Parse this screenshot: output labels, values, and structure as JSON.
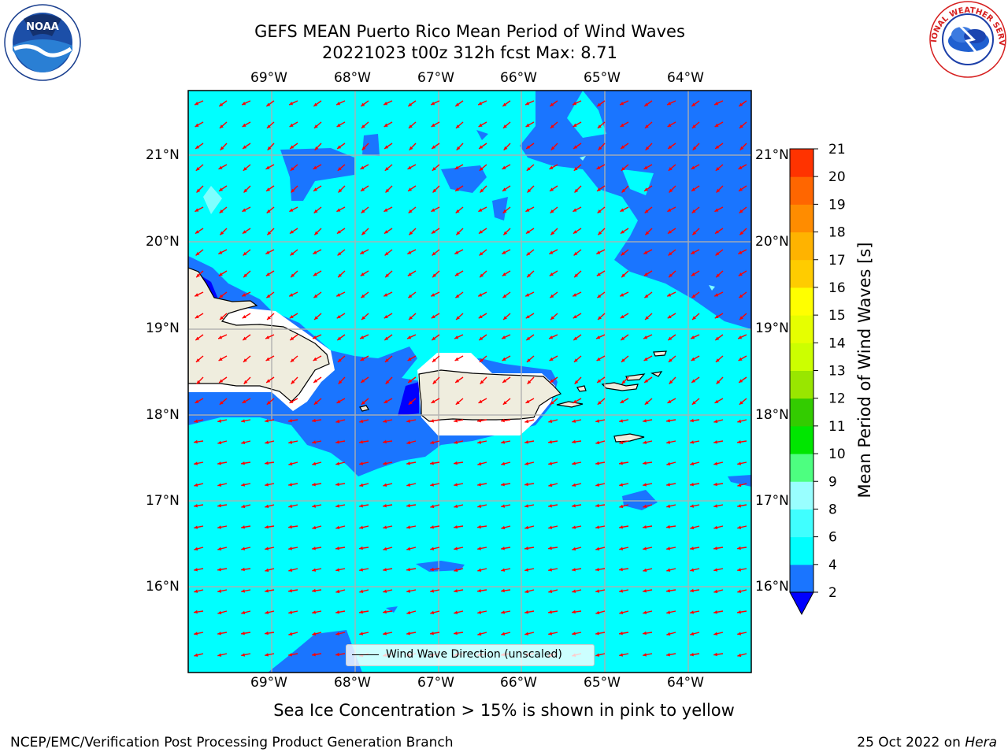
{
  "header": {
    "title_line1": "GEFS MEAN Puerto Rico Mean Period of Wind Waves",
    "title_line2": "20221023 t00z 312h fcst   Max: 8.71"
  },
  "logos": {
    "left": "noaa-logo",
    "right": "national-weather-service-logo",
    "nws_ring_text": "NATIONAL WEATHER SERVICE"
  },
  "map": {
    "region": "Puerto Rico",
    "lon_labels": [
      "69°W",
      "68°W",
      "67°W",
      "66°W",
      "65°W",
      "64°W"
    ],
    "lat_labels": [
      "21°N",
      "20°N",
      "19°N",
      "18°N",
      "17°N",
      "16°N"
    ],
    "legend_label": "Wind Wave Direction (unscaled)",
    "arrow_color": "#ff0000",
    "land_color": "#efedde"
  },
  "colorbar": {
    "label": "Mean Period of Wind Waves [s]",
    "ticks": [
      "2",
      "4",
      "6",
      "8",
      "9",
      "10",
      "11",
      "12",
      "13",
      "14",
      "15",
      "16",
      "17",
      "18",
      "19",
      "20",
      "21"
    ],
    "colors": [
      "#1a75ff",
      "#00ffff",
      "#40ffff",
      "#99ffff",
      "#4dff80",
      "#00e600",
      "#33cc00",
      "#99e600",
      "#ccff00",
      "#e6ff00",
      "#ffff00",
      "#ffcc00",
      "#ffb300",
      "#ff8c00",
      "#ff6600",
      "#ff3300",
      "#ff0000"
    ],
    "under_color": "#0000ff"
  },
  "note": "Sea Ice Concentration > 15% is shown in pink to yellow",
  "footer": {
    "left": "NCEP/EMC/Verification Post Processing Product Generation Branch",
    "right_prefix": "25 Oct 2022 on ",
    "right_machine": "Hera"
  }
}
